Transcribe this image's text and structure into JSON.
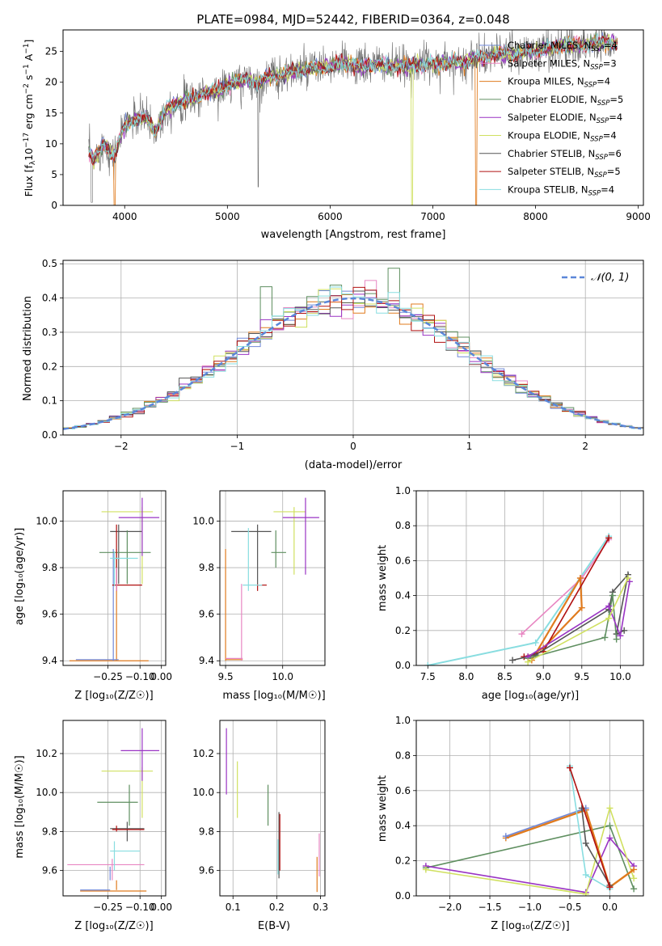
{
  "figure": {
    "title": "PLATE=0984, MJD=52442, FIBERID=0364, z=0.048"
  },
  "series_styles": [
    {
      "name": "Chabrier MILES",
      "color": "#7088d8"
    },
    {
      "name": "Salpeter MILES",
      "color": "#e886c2"
    },
    {
      "name": "Kroupa MILES",
      "color": "#e07b1e"
    },
    {
      "name": "Chabrier ELODIE",
      "color": "#5f8f60"
    },
    {
      "name": "Salpeter ELODIE",
      "color": "#9a34c4"
    },
    {
      "name": "Kroupa ELODIE",
      "color": "#d0e060"
    },
    {
      "name": "Chabrier STELIB",
      "color": "#555555"
    },
    {
      "name": "Salpeter STELIB",
      "color": "#b01010"
    },
    {
      "name": "Kroupa STELIB",
      "color": "#88dde0"
    }
  ],
  "chart_data": [
    {
      "id": "spectrum",
      "type": "line",
      "title": "PLATE=0984, MJD=52442, FIBERID=0364, z=0.048",
      "xlabel": "wavelength [Angstrom, rest frame]",
      "ylabel": "Flux [fλ10⁻¹⁷ erg cm⁻² s⁻¹ A⁻¹]",
      "xlim": [
        3400,
        9050
      ],
      "ylim": [
        0,
        28.5
      ],
      "xticks": [
        4000,
        5000,
        6000,
        7000,
        8000,
        9000
      ],
      "yticks": [
        0,
        5,
        10,
        15,
        20,
        25
      ],
      "grid": false,
      "legend_position": "bottom-right",
      "legend": [
        {
          "label": "Chabrier MILES",
          "ssp_label": "N",
          "ssp_sub": "SSP",
          "ssp_value": "=4"
        },
        {
          "label": "Salpeter MILES",
          "ssp_label": "N",
          "ssp_sub": "SSP",
          "ssp_value": "=3"
        },
        {
          "label": "Kroupa MILES",
          "ssp_label": "N",
          "ssp_sub": "SSP",
          "ssp_value": "=4"
        },
        {
          "label": "Chabrier ELODIE",
          "ssp_label": "N",
          "ssp_sub": "SSP",
          "ssp_value": "=5"
        },
        {
          "label": "Salpeter ELODIE",
          "ssp_label": "N",
          "ssp_sub": "SSP",
          "ssp_value": "=4"
        },
        {
          "label": "Kroupa ELODIE",
          "ssp_label": "N",
          "ssp_sub": "SSP",
          "ssp_value": "=4"
        },
        {
          "label": "Chabrier STELIB",
          "ssp_label": "N",
          "ssp_sub": "SSP",
          "ssp_value": "=6"
        },
        {
          "label": "Salpeter STELIB",
          "ssp_label": "N",
          "ssp_sub": "SSP",
          "ssp_value": "=5"
        },
        {
          "label": "Kroupa STELIB",
          "ssp_label": "N",
          "ssp_sub": "SSP",
          "ssp_value": "=4"
        }
      ],
      "data_curve": {
        "x": [
          3650,
          3700,
          3800,
          3900,
          4000,
          4100,
          4200,
          4300,
          4400,
          4500,
          4600,
          4700,
          4800,
          4900,
          5000,
          5100,
          5200,
          5300,
          5400,
          5500,
          5600,
          5700,
          5800,
          5900,
          6000,
          6100,
          6200,
          6300,
          6400,
          6500,
          6600,
          6700,
          6800,
          6900,
          7000,
          7100,
          7200,
          7300,
          7400,
          7500,
          7600,
          7700,
          7800,
          7900,
          8000,
          8100,
          8200,
          8300,
          8400,
          8500,
          8600,
          8700,
          8800
        ],
        "y": [
          9,
          7.5,
          10,
          8,
          13,
          14,
          14.5,
          12,
          15.5,
          16.5,
          17,
          17.5,
          18.5,
          18.5,
          19.5,
          20,
          20.5,
          19.8,
          21,
          21,
          21.5,
          22,
          22,
          22.5,
          22.5,
          23,
          23,
          22.5,
          22.8,
          23,
          22.5,
          22.5,
          22.8,
          23,
          23,
          23,
          23.5,
          23,
          24,
          24,
          24.5,
          24.8,
          24.5,
          25,
          25,
          25.5,
          25.5,
          26,
          26,
          26,
          26.5,
          26.5,
          26.3
        ]
      },
      "drops": [
        {
          "series": "Kroupa MILES",
          "x": 3905
        },
        {
          "series": "Kroupa ELODIE",
          "x": 6800
        },
        {
          "series": "Kroupa MILES",
          "x": 7420
        }
      ]
    },
    {
      "id": "residual-histogram",
      "type": "bar",
      "xlabel": "(data-model)/error",
      "ylabel": "Normed distribution",
      "xlim": [
        -2.5,
        2.5
      ],
      "ylim": [
        0,
        0.51
      ],
      "xticks": [
        -2,
        -1,
        0,
        1,
        2
      ],
      "yticks": [
        0.0,
        0.1,
        0.2,
        0.3,
        0.4,
        0.5
      ],
      "grid": true,
      "legend_position": "top-right",
      "legend_label": "𝒩(0, 1)",
      "bin_width": 0.1
    },
    {
      "id": "age-vs-Z",
      "type": "scatter",
      "xlabel": "Z [log₁₀(Z/Z☉)]",
      "ylabel": "age  [log₁₀(age/yr)]",
      "xlim": [
        -0.46,
        0.02
      ],
      "ylim": [
        9.38,
        10.13
      ],
      "xticks": [
        -0.25,
        -0.1,
        0.0
      ],
      "xtick_labels": [
        "−0.25",
        "−0.10",
        "0.00"
      ],
      "yticks": [
        9.4,
        9.6,
        9.8,
        10.0
      ],
      "grid": true
    },
    {
      "id": "age-vs-mass",
      "type": "scatter",
      "xlabel": "mass [log₁₀(M/M☉)]",
      "xlim": [
        9.45,
        10.37
      ],
      "ylim": [
        9.38,
        10.13
      ],
      "xticks": [
        9.5,
        10.0
      ],
      "yticks": [
        9.4,
        9.6,
        9.8,
        10.0
      ],
      "grid": true
    },
    {
      "id": "massweight-vs-age",
      "type": "line",
      "xlabel": "age  [log₁₀(age/yr)]",
      "ylabel": "mass weight",
      "xlim": [
        7.35,
        10.3
      ],
      "ylim": [
        0,
        1.0
      ],
      "xticks": [
        7.5,
        8.0,
        8.5,
        9.0,
        9.5,
        10.0
      ],
      "yticks": [
        0.0,
        0.2,
        0.4,
        0.6,
        0.8,
        1.0
      ],
      "grid": true
    },
    {
      "id": "mass-vs-Z",
      "type": "scatter",
      "xlabel": "Z [log₁₀(Z/Z☉)]",
      "ylabel": "mass [log₁₀(M/M☉)]",
      "xlim": [
        -0.46,
        0.02
      ],
      "ylim": [
        9.47,
        10.37
      ],
      "xticks": [
        -0.25,
        -0.1,
        0.0
      ],
      "xtick_labels": [
        "−0.25",
        "−0.10",
        "0.00"
      ],
      "yticks": [
        9.6,
        9.8,
        10.0,
        10.2
      ],
      "grid": true
    },
    {
      "id": "mass-vs-EBV",
      "type": "scatter",
      "xlabel": "E(B-V)",
      "xlim": [
        0.07,
        0.31
      ],
      "ylim": [
        9.47,
        10.37
      ],
      "xticks": [
        0.1,
        0.2,
        0.3
      ],
      "yticks": [
        9.6,
        9.8,
        10.0,
        10.2
      ],
      "grid": true
    },
    {
      "id": "massweight-vs-Z",
      "type": "line",
      "xlabel": "Z [log₁₀(Z/Z☉)]",
      "ylabel": "mass weight",
      "xlim": [
        -2.42,
        0.42
      ],
      "ylim": [
        0,
        1.0
      ],
      "xticks": [
        -2.0,
        -1.5,
        -1.0,
        -0.5,
        0.0
      ],
      "xtick_labels": [
        "−2.0",
        "−1.5",
        "−1.0",
        "−0.5",
        "0.0"
      ],
      "yticks": [
        0.0,
        0.2,
        0.4,
        0.6,
        0.8,
        1.0
      ],
      "grid": true
    }
  ]
}
